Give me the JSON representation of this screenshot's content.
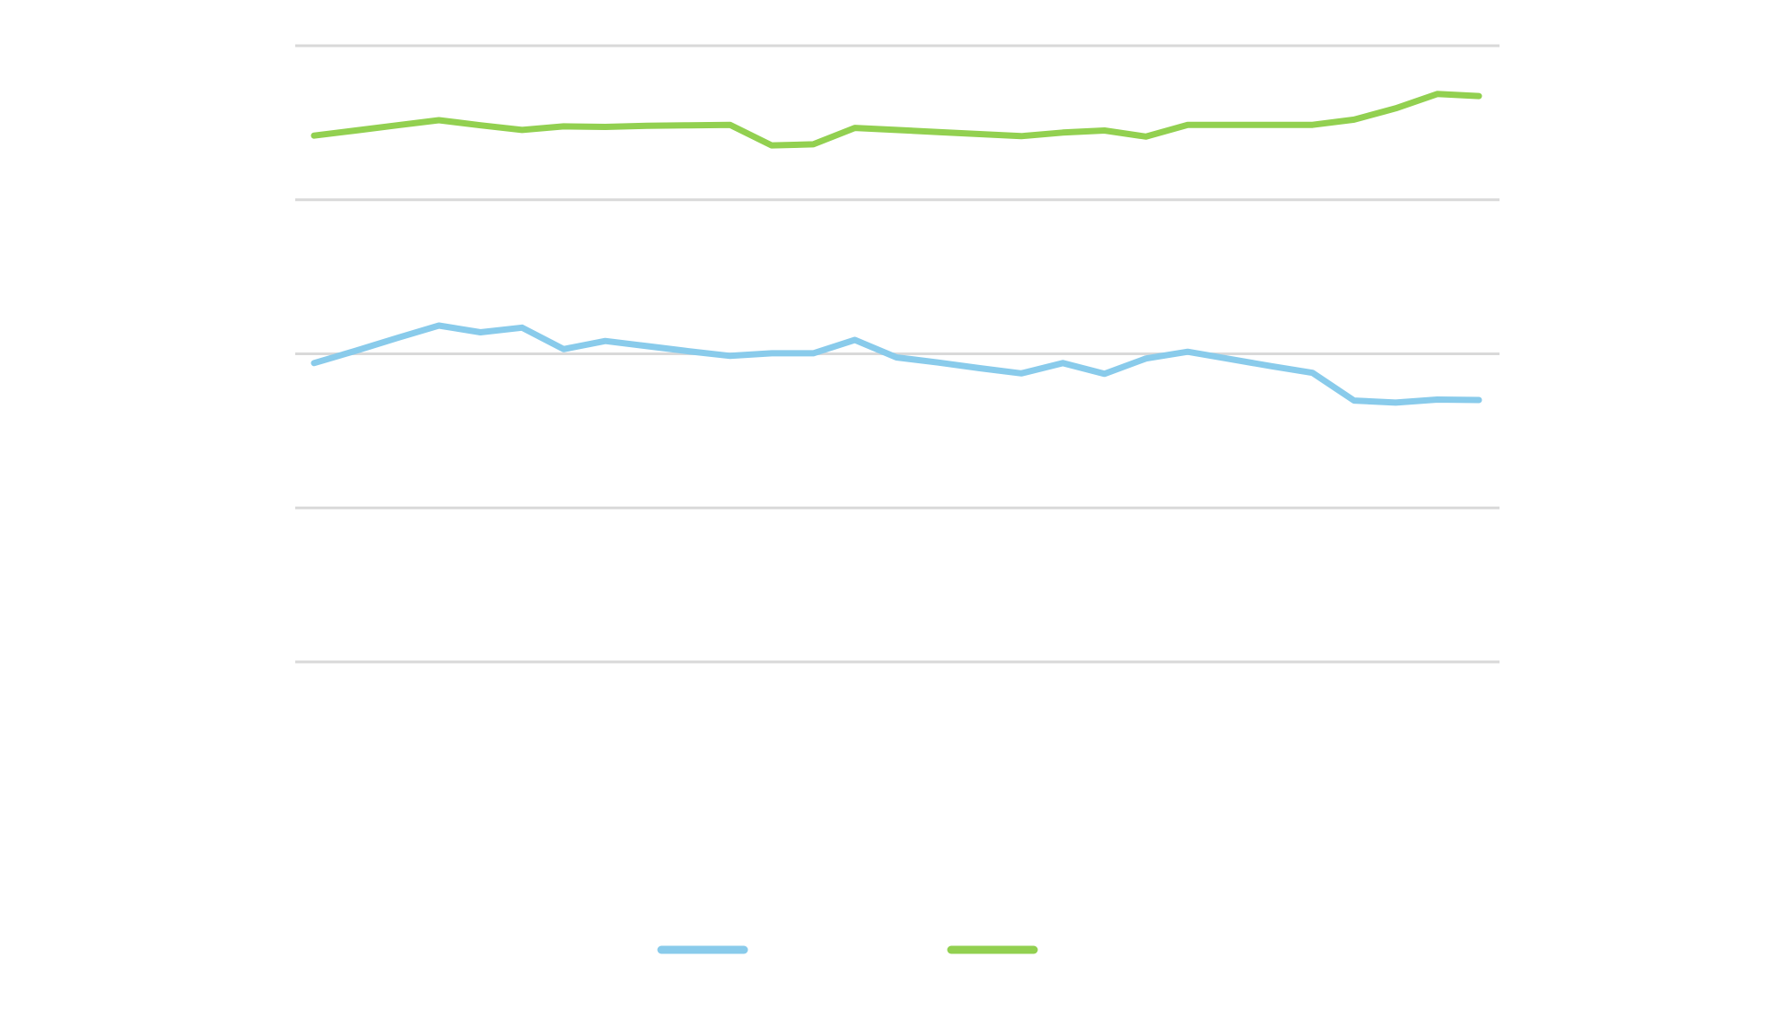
{
  "chart_data": {
    "type": "line",
    "title": "",
    "xlabel": "",
    "ylabel": "",
    "grid": true,
    "legend_placement": "bottom-center",
    "ylim": [
      0,
      120
    ],
    "x": [
      1,
      2,
      3,
      4,
      5,
      6,
      7,
      8,
      9,
      10,
      11,
      12,
      13,
      14,
      15,
      16,
      17,
      18,
      19,
      20,
      21,
      22,
      23,
      24,
      25,
      26,
      27,
      28,
      29
    ],
    "series": [
      {
        "color": "#89CBEB",
        "values": [
          58.2,
          60.6,
          63.1,
          65.5,
          64.2,
          65.1,
          60.9,
          62.5,
          61.5,
          60.5,
          59.6,
          60.1,
          60.1,
          62.7,
          59.3,
          58.3,
          57.2,
          56.2,
          58.2,
          56.1,
          59.1,
          60.4,
          59.0,
          57.6,
          56.3,
          50.9,
          50.5,
          51.1,
          51.0
        ]
      },
      {
        "color": "#92D050",
        "values": [
          102.5,
          103.5,
          104.5,
          105.5,
          104.5,
          103.6,
          104.3,
          104.2,
          104.4,
          104.5,
          104.6,
          100.6,
          100.8,
          104.0,
          103.6,
          103.2,
          102.8,
          102.4,
          103.1,
          103.5,
          102.3,
          104.6,
          104.6,
          104.6,
          104.6,
          105.6,
          107.8,
          110.6,
          110.2
        ]
      }
    ]
  }
}
